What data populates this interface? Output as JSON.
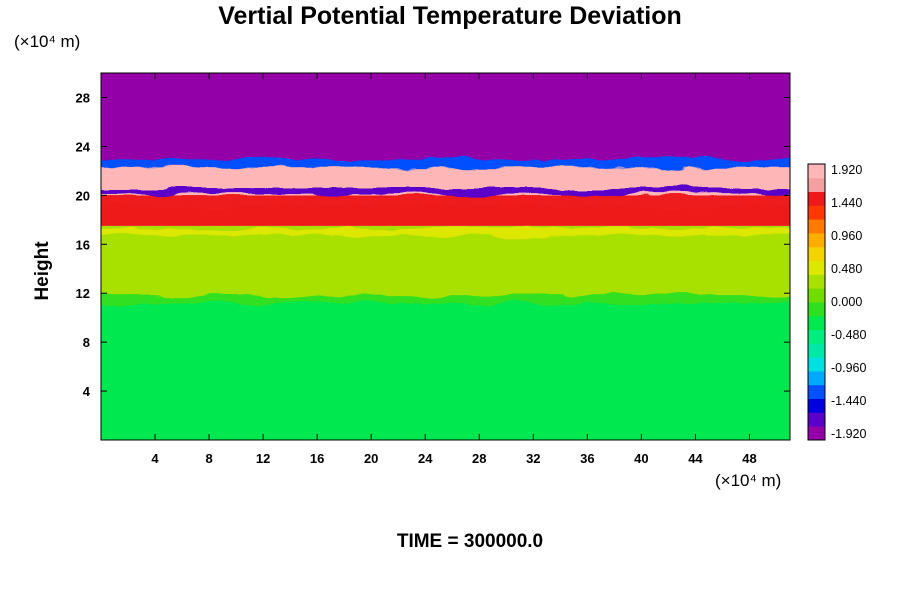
{
  "chart_data": {
    "type": "heatmap",
    "title": "Vertial Potential Temperature Deviation",
    "ylabel": "Height",
    "y_unit": "(×10⁴ m)",
    "x_unit": "(×10⁴ m)",
    "xlim": [
      0,
      51
    ],
    "ylim": [
      0,
      30
    ],
    "x_ticks": [
      "4",
      "8",
      "12",
      "16",
      "20",
      "24",
      "28",
      "32",
      "36",
      "40",
      "44",
      "48"
    ],
    "y_ticks": [
      "4",
      "8",
      "12",
      "16",
      "20",
      "24",
      "28"
    ],
    "footer": "TIME = 300000.0",
    "colorbar": {
      "min": -1.92,
      "max": 1.92,
      "labels": [
        "1.920",
        "1.440",
        "0.960",
        "0.480",
        "0.000",
        "-0.480",
        "-0.960",
        "-1.440",
        "-1.920"
      ],
      "colors": [
        "#9400a8",
        "#5a00c8",
        "#0000dd",
        "#0050ff",
        "#00a8ff",
        "#00e0e0",
        "#00e8a8",
        "#00ee80",
        "#00e850",
        "#30e020",
        "#70dc00",
        "#a8e000",
        "#dce800",
        "#f4d400",
        "#ffae00",
        "#ff7a00",
        "#ff3800",
        "#ee1a1a",
        "#f4a0a0",
        "#ffb6b6"
      ]
    },
    "bands": [
      {
        "y0": 0,
        "y1": 11.5,
        "value": -0.2
      },
      {
        "y0": 11.5,
        "y1": 17.5,
        "value": 0.3
      },
      {
        "y0": 17.5,
        "y1": 20,
        "value": 1.4
      },
      {
        "y0": 20,
        "y1": 22.5,
        "value": 1.92
      },
      {
        "y0": 22.5,
        "y1": 30,
        "value": -1.92
      }
    ]
  }
}
